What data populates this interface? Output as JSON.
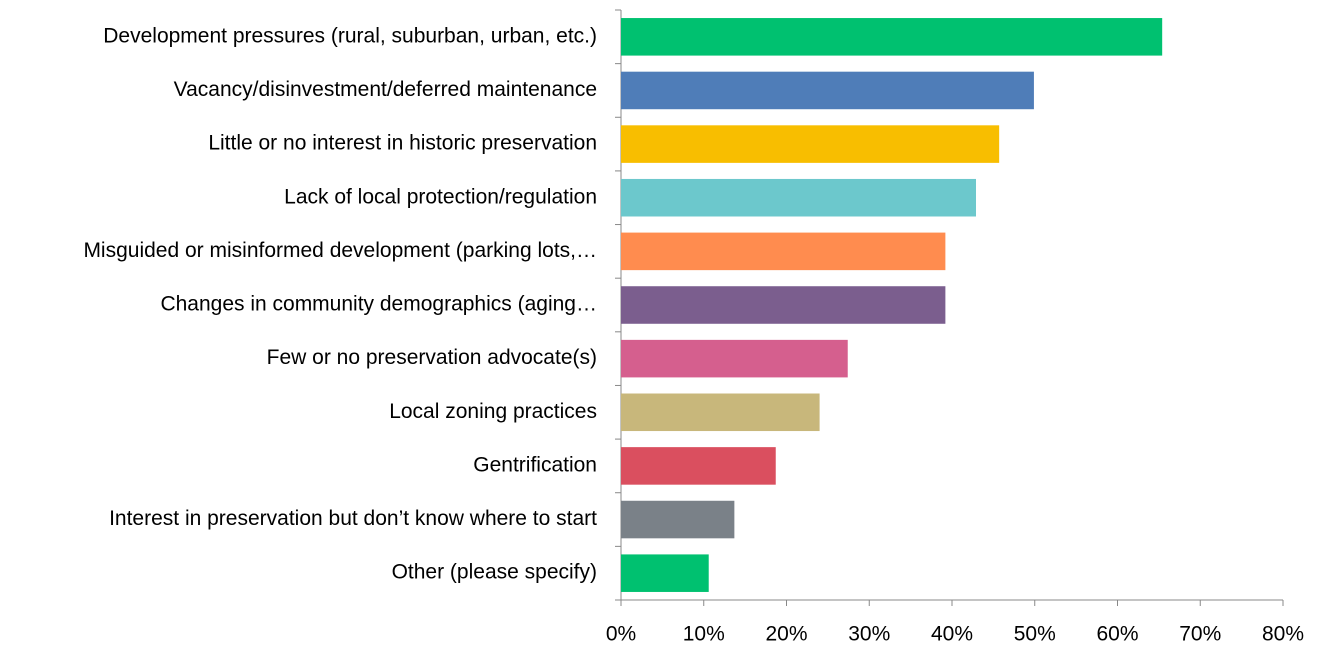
{
  "chart_data": {
    "type": "barh",
    "categories": [
      "Development pressures (rural, suburban, urban, etc.)",
      "Vacancy/disinvestment/deferred maintenance",
      "Little or no interest in historic preservation",
      "Lack of local protection/regulation",
      "Misguided or misinformed development (parking lots,…",
      "Changes in community demographics (aging…",
      "Few or no preservation advocate(s)",
      "Local zoning practices",
      "Gentrification",
      "Interest in preservation but don’t know where to start",
      "Other (please specify)"
    ],
    "values": [
      65.4,
      49.9,
      45.7,
      42.9,
      39.2,
      39.2,
      27.4,
      24.0,
      18.7,
      13.7,
      10.6
    ],
    "colors": [
      "#00c170",
      "#4f7db8",
      "#f8be00",
      "#6cc8cc",
      "#ff8c4f",
      "#7b5e8e",
      "#d55f8e",
      "#c8b77b",
      "#da4f5f",
      "#7a8188",
      "#00c170"
    ],
    "xlim": [
      0,
      80
    ],
    "xticks": [
      {
        "value": 0,
        "label": "0%"
      },
      {
        "value": 10,
        "label": "10%"
      },
      {
        "value": 20,
        "label": "20%"
      },
      {
        "value": 30,
        "label": "30%"
      },
      {
        "value": 40,
        "label": "40%"
      },
      {
        "value": 50,
        "label": "50%"
      },
      {
        "value": 60,
        "label": "60%"
      },
      {
        "value": 70,
        "label": "70%"
      },
      {
        "value": 80,
        "label": "80%"
      }
    ],
    "grid": false
  }
}
